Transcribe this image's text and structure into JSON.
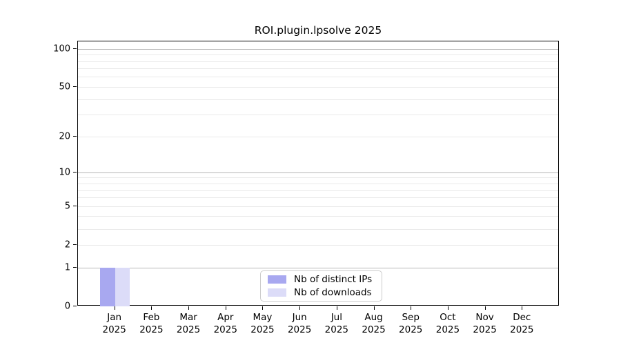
{
  "chart_data": {
    "type": "bar",
    "title": "ROI.plugin.lpsolve 2025",
    "x_months": [
      "Jan",
      "Feb",
      "Mar",
      "Apr",
      "May",
      "Jun",
      "Jul",
      "Aug",
      "Sep",
      "Oct",
      "Nov",
      "Dec"
    ],
    "x_year": "2025",
    "series": [
      {
        "name": "Nb of distinct IPs",
        "color": "#a8a8f0",
        "values": [
          1,
          0,
          0,
          0,
          0,
          0,
          0,
          0,
          0,
          0,
          0,
          0
        ]
      },
      {
        "name": "Nb of downloads",
        "color": "#dcdcf8",
        "values": [
          1,
          0,
          0,
          0,
          0,
          0,
          0,
          0,
          0,
          0,
          0,
          0
        ]
      }
    ],
    "yscale": "log1p",
    "ylim": [
      0,
      115
    ],
    "y_tick_values": [
      0,
      1,
      2,
      5,
      10,
      20,
      50,
      100
    ],
    "y_tick_labels": [
      "0",
      "1",
      "2",
      "5",
      "10",
      "20",
      "50",
      "100"
    ],
    "y_major_gridlines": [
      1,
      10,
      100
    ],
    "y_minor_gridlines": [
      2,
      3,
      4,
      5,
      6,
      7,
      8,
      9,
      20,
      30,
      40,
      50,
      60,
      70,
      80,
      90
    ],
    "grid": "horizontal",
    "legend_position": "lower center",
    "colors": {
      "major_grid": "#b5b5b5",
      "minor_grid": "#e9e9e9",
      "spine": "#000000",
      "text": "#000000",
      "legend_border": "#cbcbcb"
    }
  }
}
